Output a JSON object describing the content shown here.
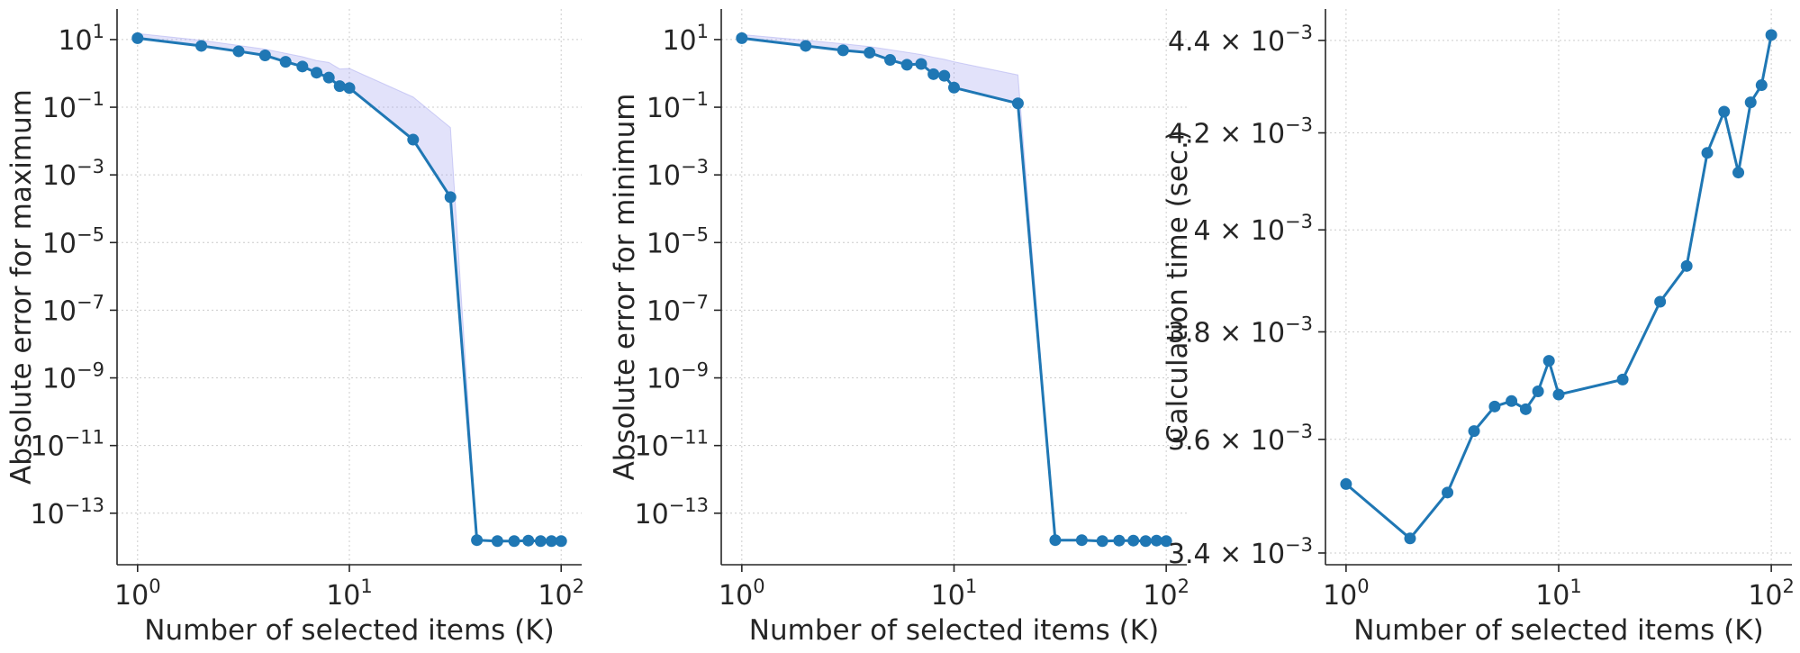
{
  "colors": {
    "line": "#1f77b4",
    "band": "#a8a8f0"
  },
  "chart_data": [
    {
      "type": "line",
      "xscale": "log",
      "yscale": "log",
      "xlabel": "Number of selected items (K)",
      "ylabel": "Absolute error for maximum",
      "xlim": [
        0.8,
        125
      ],
      "ylim": [
        3e-15,
        80
      ],
      "x_ticks": [
        {
          "base": "10",
          "exp": "0",
          "v": 1
        },
        {
          "base": "10",
          "exp": "1",
          "v": 10
        },
        {
          "base": "10",
          "exp": "2",
          "v": 100
        }
      ],
      "y_ticks": [
        {
          "base": "10",
          "exp": "1",
          "v": 10
        },
        {
          "base": "10",
          "exp": "−1",
          "v": 0.1
        },
        {
          "base": "10",
          "exp": "−3",
          "v": 0.001
        },
        {
          "base": "10",
          "exp": "−5",
          "v": 1e-05
        },
        {
          "base": "10",
          "exp": "−7",
          "v": 1e-07
        },
        {
          "base": "10",
          "exp": "−9",
          "v": 1e-09
        },
        {
          "base": "10",
          "exp": "−11",
          "v": 1e-11
        },
        {
          "base": "10",
          "exp": "−13",
          "v": 1e-13
        }
      ],
      "grid": true,
      "x": [
        1,
        2,
        3,
        4,
        5,
        6,
        7,
        8,
        9,
        10,
        20,
        30,
        40,
        50,
        60,
        70,
        80,
        90,
        100
      ],
      "y": [
        11,
        6.5,
        4.5,
        3.4,
        2.2,
        1.6,
        1.05,
        0.75,
        0.42,
        0.37,
        0.011,
        0.00022,
        1.6e-14,
        1.5e-14,
        1.5e-14,
        1.55e-14,
        1.5e-14,
        1.5e-14,
        1.5e-14
      ],
      "band_upper": [
        15,
        9.5,
        6.7,
        5.2,
        3.9,
        3.1,
        2.4,
        2.1,
        1.35,
        1.4,
        0.2,
        0.025,
        1.6e-14,
        1.5e-14,
        1.5e-14,
        1.55e-14,
        1.5e-14,
        1.5e-14,
        1.5e-14
      ]
    },
    {
      "type": "line",
      "xscale": "log",
      "yscale": "log",
      "xlabel": "Number of selected items (K)",
      "ylabel": "Absolute error for minimum",
      "xlim": [
        0.8,
        125
      ],
      "ylim": [
        3e-15,
        80
      ],
      "x_ticks": [
        {
          "base": "10",
          "exp": "0",
          "v": 1
        },
        {
          "base": "10",
          "exp": "1",
          "v": 10
        },
        {
          "base": "10",
          "exp": "2",
          "v": 100
        }
      ],
      "y_ticks": [
        {
          "base": "10",
          "exp": "1",
          "v": 10
        },
        {
          "base": "10",
          "exp": "−1",
          "v": 0.1
        },
        {
          "base": "10",
          "exp": "−3",
          "v": 0.001
        },
        {
          "base": "10",
          "exp": "−5",
          "v": 1e-05
        },
        {
          "base": "10",
          "exp": "−7",
          "v": 1e-07
        },
        {
          "base": "10",
          "exp": "−9",
          "v": 1e-09
        },
        {
          "base": "10",
          "exp": "−11",
          "v": 1e-11
        },
        {
          "base": "10",
          "exp": "−13",
          "v": 1e-13
        }
      ],
      "grid": true,
      "x": [
        1,
        2,
        3,
        4,
        5,
        6,
        7,
        8,
        9,
        10,
        20,
        30,
        40,
        50,
        60,
        70,
        80,
        90,
        100
      ],
      "y": [
        11,
        6.5,
        4.8,
        4.1,
        2.5,
        1.8,
        1.9,
        0.95,
        0.85,
        0.38,
        0.13,
        1.6e-14,
        1.6e-14,
        1.5e-14,
        1.55e-14,
        1.55e-14,
        1.5e-14,
        1.55e-14,
        1.5e-14
      ],
      "band_upper": [
        14,
        9.5,
        7.5,
        6.2,
        5,
        4.2,
        3.6,
        3,
        2.6,
        2.2,
        0.9,
        1.6e-14,
        1.6e-14,
        1.5e-14,
        1.55e-14,
        1.55e-14,
        1.5e-14,
        1.55e-14,
        1.5e-14
      ]
    },
    {
      "type": "line",
      "xscale": "log",
      "yscale": "log",
      "xlabel": "Number of selected items (K)",
      "ylabel": "Calculation time (sec.)",
      "xlim": [
        0.8,
        125
      ],
      "ylim": [
        0.00338,
        0.00447
      ],
      "x_ticks": [
        {
          "base": "10",
          "exp": "0",
          "v": 1
        },
        {
          "base": "10",
          "exp": "1",
          "v": 10
        },
        {
          "base": "10",
          "exp": "2",
          "v": 100
        }
      ],
      "y_ticks": [
        {
          "base": "4.4 × 10",
          "exp": "−3",
          "v": 0.0044
        },
        {
          "base": "4.2 × 10",
          "exp": "−3",
          "v": 0.0042
        },
        {
          "base": "4 × 10",
          "exp": "−3",
          "v": 0.004
        },
        {
          "base": "3.8 × 10",
          "exp": "−3",
          "v": 0.0038
        },
        {
          "base": "3.6 × 10",
          "exp": "−3",
          "v": 0.0036
        },
        {
          "base": "3.4 × 10",
          "exp": "−3",
          "v": 0.0034
        }
      ],
      "grid": true,
      "x": [
        1,
        2,
        3,
        4,
        5,
        6,
        7,
        8,
        9,
        10,
        20,
        30,
        40,
        50,
        60,
        70,
        80,
        90,
        100
      ],
      "y": [
        0.00352,
        0.003425,
        0.003505,
        0.003615,
        0.00366,
        0.00367,
        0.003655,
        0.003688,
        0.003745,
        0.003682,
        0.00371,
        0.003858,
        0.003928,
        0.004158,
        0.004245,
        0.004117,
        0.004265,
        0.004302,
        0.004412
      ]
    }
  ]
}
